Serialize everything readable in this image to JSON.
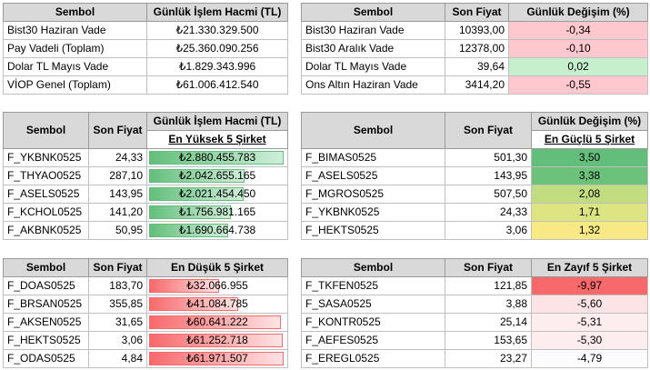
{
  "t1": {
    "headers": [
      "Sembol",
      "Günlük İşlem Hacmi (TL)"
    ],
    "rows": [
      [
        "Bist30 Haziran Vade",
        "₺21.330.329.500"
      ],
      [
        "Pay Vadeli (Toplam)",
        "₺25.360.090.256"
      ],
      [
        "Dolar TL Mayıs Vade",
        "₺1.829.343.996"
      ],
      [
        "VİOP Genel (Toplam)",
        "₺61.006.412.540"
      ]
    ]
  },
  "t2": {
    "headers": [
      "Sembol",
      "Son Fiyat",
      "Günlük Değişim (%)"
    ],
    "rows": [
      {
        "s": "Bist30 Haziran Vade",
        "p": "10393,00",
        "c": "-0,34",
        "bg": "#ffc7ce"
      },
      {
        "s": "Bist30 Aralık Vade",
        "p": "12378,00",
        "c": "-0,10",
        "bg": "#ffc7ce"
      },
      {
        "s": "Dolar TL Mayıs Vade",
        "p": "39,64",
        "c": "0,02",
        "bg": "#c6efce"
      },
      {
        "s": "Ons Altın Haziran Vade",
        "p": "3414,20",
        "c": "-0,55",
        "bg": "#ffc7ce"
      }
    ]
  },
  "t3": {
    "headers": [
      "Sembol",
      "Son Fiyat",
      "Günlük İşlem Hacmi (TL)"
    ],
    "sub": "En Yüksek 5 Şirket",
    "rows": [
      {
        "s": "F_YKBNK0525",
        "p": "24,33",
        "v": "₺2.880.455.783",
        "level": 1.0
      },
      {
        "s": "F_THYAO0525",
        "p": "287,10",
        "v": "₺2.042.655.165",
        "level": 0.71
      },
      {
        "s": "F_ASELS0525",
        "p": "143,95",
        "v": "₺2.021.454.450",
        "level": 0.7
      },
      {
        "s": "F_KCHOL0525",
        "p": "141,20",
        "v": "₺1.756.981.165",
        "level": 0.61
      },
      {
        "s": "F_AKBNK0525",
        "p": "50,95",
        "v": "₺1.690.664.738",
        "level": 0.59
      }
    ]
  },
  "t4": {
    "headers": [
      "Sembol",
      "Son Fiyat",
      "Günlük Değişim (%)"
    ],
    "sub": "En Güçlü 5 Şirket",
    "rows": [
      {
        "s": "F_BIMAS0525",
        "p": "501,30",
        "c": "3,50",
        "bg": "#63be7b"
      },
      {
        "s": "F_ASELS0525",
        "p": "143,95",
        "c": "3,38",
        "bg": "#6cc17b"
      },
      {
        "s": "F_MGROS0525",
        "p": "507,50",
        "c": "2,08",
        "bg": "#c1dd7f"
      },
      {
        "s": "F_YKBNK0525",
        "p": "24,33",
        "c": "1,71",
        "bg": "#dde482"
      },
      {
        "s": "F_HEKTS0525",
        "p": "3,06",
        "c": "1,32",
        "bg": "#f9e984"
      }
    ]
  },
  "t5": {
    "headers": [
      "Sembol",
      "Son Fiyat",
      "En Düşük 5 Şirket"
    ],
    "rows": [
      {
        "s": "F_DOAS0525",
        "p": "183,70",
        "v": "₺32.066.955",
        "level": 0.52
      },
      {
        "s": "F_BRSAN0525",
        "p": "355,85",
        "v": "₺41.084.785",
        "level": 0.66
      },
      {
        "s": "F_AKSEN0525",
        "p": "31,65",
        "v": "₺60.641.222",
        "level": 0.98
      },
      {
        "s": "F_HEKTS0525",
        "p": "3,06",
        "v": "₺61.252.718",
        "level": 0.99
      },
      {
        "s": "F_ODAS0525",
        "p": "4,84",
        "v": "₺61.971.507",
        "level": 1.0
      }
    ]
  },
  "t6": {
    "headers": [
      "Sembol",
      "Son Fiyat",
      "En Zayıf 5 Şirket"
    ],
    "rows": [
      {
        "s": "F_TKFEN0525",
        "p": "121,85",
        "c": "-9,97",
        "bg": "#f8696b"
      },
      {
        "s": "F_SASA0525",
        "p": "3,88",
        "c": "-5,60",
        "bg": "#fce4e6"
      },
      {
        "s": "F_KONTR0525",
        "p": "25,14",
        "c": "-5,31",
        "bg": "#fdedef"
      },
      {
        "s": "F_AEFES0525",
        "p": "153,65",
        "c": "-5,30",
        "bg": "#fdedef"
      },
      {
        "s": "F_EREGL0525",
        "p": "23,27",
        "c": "-4,79",
        "bg": "#fcfcff"
      }
    ]
  }
}
